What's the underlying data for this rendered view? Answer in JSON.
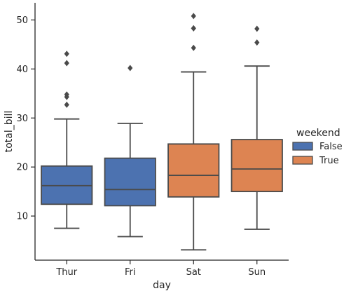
{
  "chart_data": {
    "type": "box",
    "xlabel": "day",
    "ylabel": "total_bill",
    "ylim": [
      1.0,
      53.5
    ],
    "yticks": [
      10,
      20,
      30,
      40,
      50
    ],
    "categories": [
      "Thur",
      "Fri",
      "Sat",
      "Sun"
    ],
    "legend": {
      "title": "weekend",
      "placement": "right",
      "entries": [
        {
          "label": "False",
          "color": "#4c72b0"
        },
        {
          "label": "True",
          "color": "#dd8452"
        }
      ]
    },
    "boxes": [
      {
        "category": "Thur",
        "weekend": "False",
        "whisker_low": 7.5,
        "q1": 12.4,
        "median": 16.2,
        "q3": 20.2,
        "whisker_high": 29.8,
        "outliers": [
          32.7,
          34.3,
          34.8,
          41.2,
          43.1
        ]
      },
      {
        "category": "Fri",
        "weekend": "False",
        "whisker_low": 5.8,
        "q1": 12.1,
        "median": 15.4,
        "q3": 21.8,
        "whisker_high": 28.9,
        "outliers": [
          40.2
        ]
      },
      {
        "category": "Sat",
        "weekend": "True",
        "whisker_low": 3.1,
        "q1": 13.9,
        "median": 18.3,
        "q3": 24.7,
        "whisker_high": 39.4,
        "outliers": [
          44.3,
          48.3,
          48.3,
          50.8
        ]
      },
      {
        "category": "Sun",
        "weekend": "True",
        "whisker_low": 7.3,
        "q1": 15.0,
        "median": 19.6,
        "q3": 25.6,
        "whisker_high": 40.6,
        "outliers": [
          45.4,
          48.2
        ]
      }
    ]
  }
}
